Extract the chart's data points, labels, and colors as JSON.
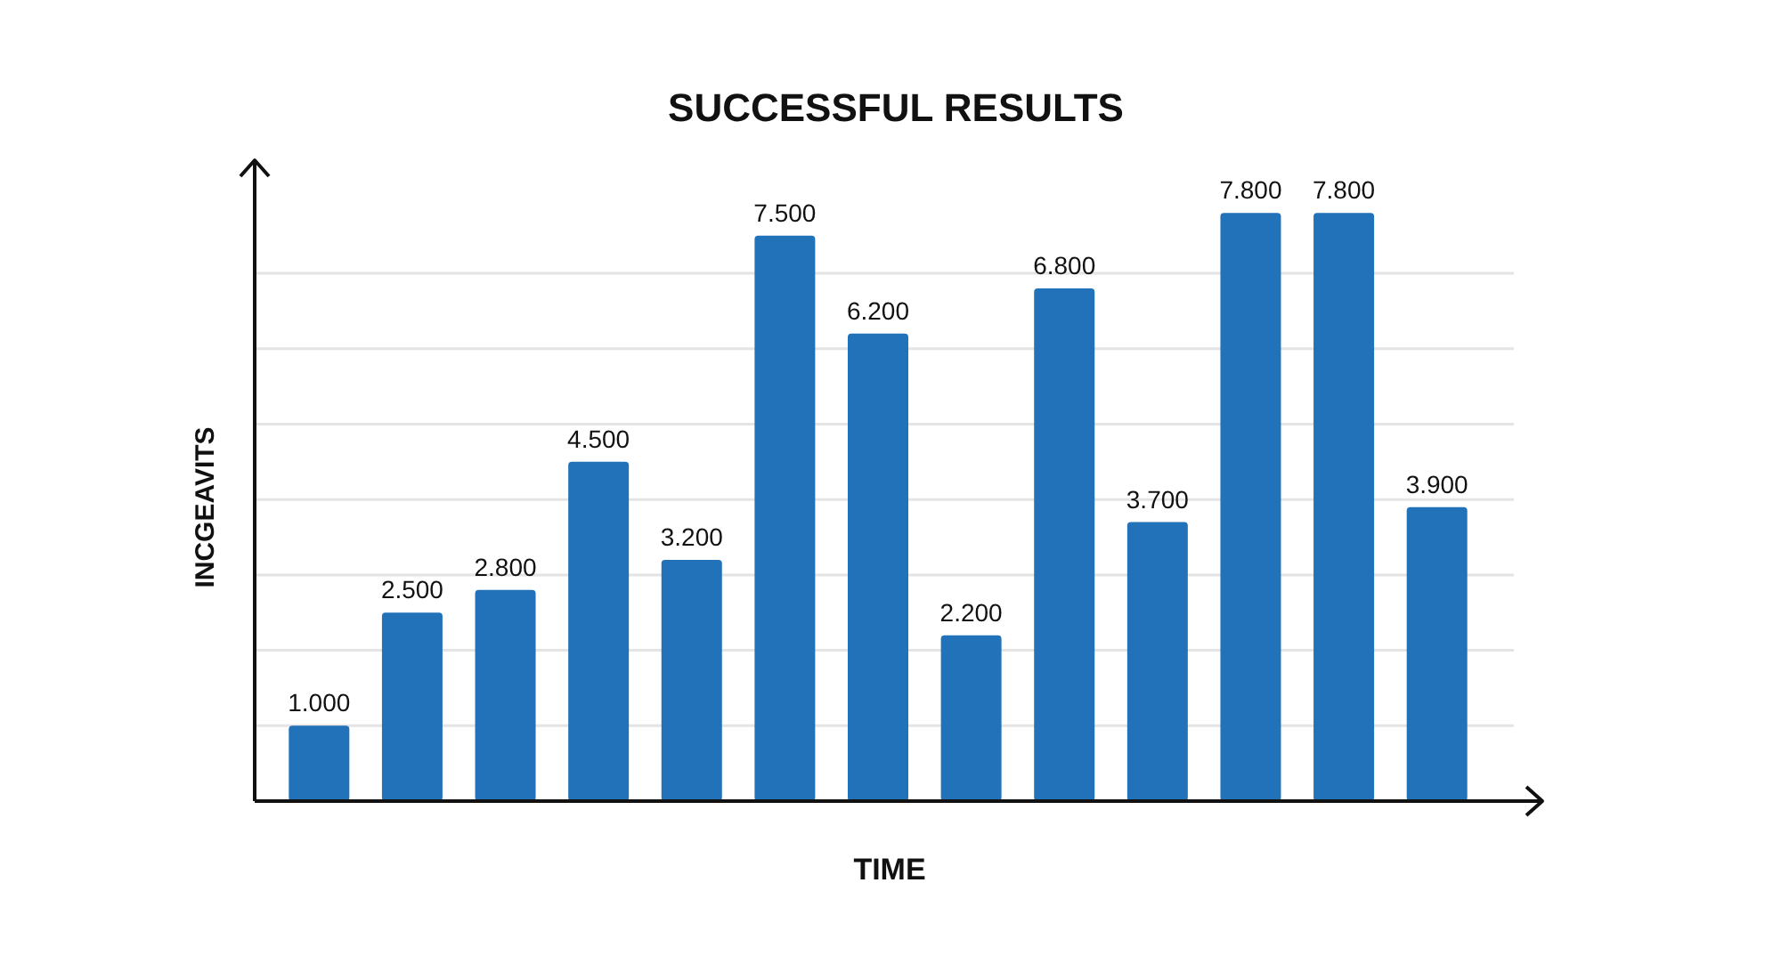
{
  "chart_data": {
    "type": "bar",
    "title": "SUCCESSFUL RESULTS",
    "xlabel": "TIME",
    "ylabel": "INCGEAVITS",
    "categories": [
      null,
      null,
      null,
      null,
      null,
      null,
      null,
      null,
      null,
      null,
      null,
      null,
      null
    ],
    "values": [
      1.0,
      2.5,
      2.8,
      4.5,
      3.2,
      7.5,
      6.2,
      2.2,
      6.8,
      3.7,
      7.8,
      7.8,
      3.9
    ],
    "value_labels": [
      "1.000",
      "2.500",
      "2.800",
      "4.500",
      "3.200",
      "7.500",
      "6.200",
      "2.200",
      "6.800",
      "3.700",
      "7.800",
      "7.800",
      "3.900"
    ],
    "color": "#2272b9",
    "ylim": [
      0,
      8.5
    ],
    "yticks": [
      {
        "value": 1,
        "label": null
      },
      {
        "value": 2,
        "label": null
      },
      {
        "value": 3,
        "label": null
      },
      {
        "value": 4,
        "label": null
      },
      {
        "value": 5,
        "label": null
      },
      {
        "value": 6,
        "label": null
      },
      {
        "value": 7,
        "label": null
      }
    ],
    "grid": "y"
  }
}
